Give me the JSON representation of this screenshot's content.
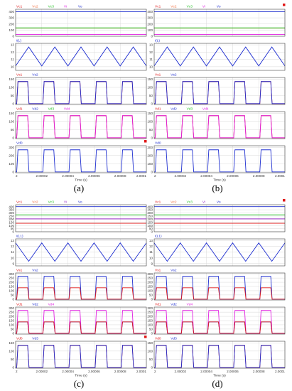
{
  "captions": [
    "(a)",
    "(b)",
    "(c)",
    "(d)"
  ],
  "colors": {
    "blue": "#1f2fd0",
    "red": "#e01818",
    "orange": "#f06a3a",
    "green": "#1ec01e",
    "magenta": "#e020e0",
    "purple": "#9a30c8",
    "grid": "#d9d9d9",
    "axis": "#000000"
  },
  "x_axis": {
    "label": "Time (s)",
    "ticks": [
      "2",
      "2.00002",
      "2.00004",
      "2.00006",
      "2.00008",
      "2.0001"
    ]
  },
  "chart_data": [
    {
      "id": "a",
      "type": "line",
      "x_range": [
        2,
        2.0001
      ],
      "cycles": 5,
      "panels": [
        {
          "legend": [
            "Vc1",
            "Vc2",
            "Vc3",
            "Vi",
            "Vo"
          ],
          "legend_colors": [
            "red",
            "orange",
            "green",
            "magenta",
            "blue"
          ],
          "yticks": [
            "0",
            "100",
            "200",
            "300",
            "400"
          ],
          "ylim": [
            0,
            440
          ],
          "series": [
            {
              "name": "Vo",
              "color": "blue",
              "shape": "flat",
              "level": 400
            },
            {
              "name": "Vc1",
              "color": "red",
              "shape": "flat",
              "level": 134
            },
            {
              "name": "Vc2",
              "color": "orange",
              "shape": "flat",
              "level": 132
            },
            {
              "name": "Vc3",
              "color": "green",
              "shape": "flat",
              "level": 136
            },
            {
              "name": "Vi",
              "color": "magenta",
              "shape": "flat",
              "level": 30
            }
          ]
        },
        {
          "legend": [
            "i(L)"
          ],
          "legend_colors": [
            "blue"
          ],
          "yticks": [
            "10",
            "11",
            "12",
            "13"
          ],
          "ylim": [
            9.5,
            13.2
          ],
          "series": [
            {
              "name": "i(L)",
              "color": "blue",
              "shape": "triangle",
              "low": 10.1,
              "high": 12.7,
              "start": "low"
            }
          ]
        },
        {
          "legend": [
            "Vs1",
            "Vs2"
          ],
          "legend_colors": [
            "red",
            "blue"
          ],
          "yticks": [
            "0",
            "50",
            "100",
            "150"
          ],
          "ylim": [
            -5,
            160
          ],
          "series": [
            {
              "name": "Vs1",
              "color": "red",
              "shape": "square",
              "low": 0,
              "high": 135,
              "duty": 0.5
            },
            {
              "name": "Vs2",
              "color": "blue",
              "shape": "square",
              "low": 0,
              "high": 135,
              "duty": 0.5
            }
          ]
        },
        {
          "legend": [
            "Vd1",
            "Vd2",
            "Vd3",
            "Vd4"
          ],
          "legend_colors": [
            "red",
            "blue",
            "green",
            "magenta"
          ],
          "yticks": [
            "0",
            "50",
            "100",
            "150"
          ],
          "ylim": [
            -5,
            160
          ],
          "series": [
            {
              "name": "Vd1",
              "color": "red",
              "shape": "square",
              "low": 0,
              "high": 135,
              "duty": 0.5
            },
            {
              "name": "Vd4",
              "color": "magenta",
              "shape": "square",
              "low": 0,
              "high": 135,
              "duty": 0.5
            }
          ]
        },
        {
          "legend": [
            "Vd0"
          ],
          "legend_colors": [
            "blue"
          ],
          "yticks": [
            "0",
            "100",
            "200",
            "300"
          ],
          "ylim": [
            -10,
            320
          ],
          "series": [
            {
              "name": "Vd0",
              "color": "blue",
              "shape": "square",
              "low": 0,
              "high": 270,
              "duty": 0.5
            }
          ]
        }
      ]
    },
    {
      "id": "b",
      "type": "line",
      "x_range": [
        2,
        2.0001
      ],
      "cycles": 5,
      "panels": [
        {
          "legend": [
            "Vc1",
            "Vc2",
            "Vc3",
            "Vi",
            "Vo"
          ],
          "legend_colors": [
            "red",
            "orange",
            "green",
            "magenta",
            "blue"
          ],
          "yticks": [
            "0",
            "100",
            "200",
            "300",
            "400"
          ],
          "ylim": [
            0,
            440
          ],
          "series": [
            {
              "name": "Vo",
              "color": "blue",
              "shape": "flat",
              "level": 400
            },
            {
              "name": "Vc1",
              "color": "red",
              "shape": "flat",
              "level": 134
            },
            {
              "name": "Vc2",
              "color": "orange",
              "shape": "flat",
              "level": 132
            },
            {
              "name": "Vc3",
              "color": "green",
              "shape": "flat",
              "level": 136
            },
            {
              "name": "Vi",
              "color": "magenta",
              "shape": "flat",
              "level": 30
            }
          ]
        },
        {
          "legend": [
            "i(L)"
          ],
          "legend_colors": [
            "blue"
          ],
          "yticks": [
            "10",
            "11",
            "12",
            "13"
          ],
          "ylim": [
            9.5,
            13.2
          ],
          "series": [
            {
              "name": "i(L)",
              "color": "blue",
              "shape": "triangle",
              "low": 10.1,
              "high": 12.7,
              "start": "low"
            }
          ]
        },
        {
          "legend": [
            "Vs1",
            "Vs2"
          ],
          "legend_colors": [
            "red",
            "blue"
          ],
          "yticks": [
            "0",
            "50",
            "100",
            "150"
          ],
          "ylim": [
            -5,
            160
          ],
          "series": [
            {
              "name": "Vs1",
              "color": "red",
              "shape": "square",
              "low": 0,
              "high": 135,
              "duty": 0.5
            },
            {
              "name": "Vs2",
              "color": "blue",
              "shape": "square",
              "low": 0,
              "high": 135,
              "duty": 0.5
            }
          ]
        },
        {
          "legend": [
            "Vd1",
            "Vd2",
            "Vd3",
            "Vd4"
          ],
          "legend_colors": [
            "red",
            "blue",
            "green",
            "magenta"
          ],
          "yticks": [
            "0",
            "50",
            "100",
            "150"
          ],
          "ylim": [
            -5,
            160
          ],
          "series": [
            {
              "name": "Vd1",
              "color": "red",
              "shape": "square",
              "low": 0,
              "high": 135,
              "duty": 0.5
            },
            {
              "name": "Vd4",
              "color": "magenta",
              "shape": "square",
              "low": 0,
              "high": 135,
              "duty": 0.5
            }
          ]
        },
        {
          "legend": [
            "Vd0"
          ],
          "legend_colors": [
            "blue"
          ],
          "yticks": [
            "0",
            "100",
            "200",
            "300"
          ],
          "ylim": [
            -10,
            320
          ],
          "series": [
            {
              "name": "Vd0",
              "color": "blue",
              "shape": "square",
              "low": 0,
              "high": 270,
              "duty": 0.5
            }
          ]
        }
      ]
    },
    {
      "id": "c",
      "type": "line",
      "x_range": [
        2,
        2.0001
      ],
      "cycles": 5,
      "panels": [
        {
          "legend": [
            "Vc1",
            "Vc2",
            "Vc3",
            "Vi",
            "Vo"
          ],
          "legend_colors": [
            "red",
            "orange",
            "green",
            "purple",
            "blue"
          ],
          "yticks": [
            "0",
            "50",
            "100",
            "150",
            "200",
            "250",
            "300",
            "350",
            "400"
          ],
          "ylim": [
            0,
            430
          ],
          "series": [
            {
              "name": "Vo",
              "color": "blue",
              "shape": "flat",
              "level": 400
            },
            {
              "name": "Vc3",
              "color": "green",
              "shape": "flat",
              "level": 270
            },
            {
              "name": "Vi",
              "color": "purple",
              "shape": "flat",
              "level": 205
            },
            {
              "name": "Vc1",
              "color": "red",
              "shape": "flat",
              "level": 135
            }
          ]
        },
        {
          "legend": [
            "i(L1)"
          ],
          "legend_colors": [
            "blue"
          ],
          "yticks": [
            "9",
            "10",
            "11",
            "12",
            "13"
          ],
          "ylim": [
            8.6,
            13.3
          ],
          "series": [
            {
              "name": "i(L1)",
              "color": "blue",
              "shape": "triangle",
              "low": 9.4,
              "high": 12.6,
              "start": "high"
            }
          ]
        },
        {
          "legend": [
            "Vs1",
            "Vs2"
          ],
          "legend_colors": [
            "red",
            "blue"
          ],
          "yticks": [
            "0",
            "50",
            "100",
            "150",
            "200",
            "250",
            "300"
          ],
          "ylim": [
            -10,
            310
          ],
          "series": [
            {
              "name": "Vs2",
              "color": "blue",
              "shape": "square",
              "low": 0,
              "high": 270,
              "duty": 0.5
            },
            {
              "name": "Vs1",
              "color": "red",
              "shape": "square",
              "low": 0,
              "high": 135,
              "duty": 0.5
            }
          ]
        },
        {
          "legend": [
            "Vd1",
            "Vd2",
            "Vd4"
          ],
          "legend_colors": [
            "red",
            "blue",
            "magenta"
          ],
          "yticks": [
            "0",
            "50",
            "100",
            "150",
            "200",
            "250",
            "300"
          ],
          "ylim": [
            -10,
            310
          ],
          "series": [
            {
              "name": "Vd4",
              "color": "magenta",
              "shape": "square",
              "low": 0,
              "high": 270,
              "duty": 0.5
            },
            {
              "name": "Vd2",
              "color": "blue",
              "shape": "square",
              "low": 0,
              "high": 135,
              "duty": 0.5
            },
            {
              "name": "Vd1",
              "color": "red",
              "shape": "square",
              "low": 0,
              "high": 135,
              "duty": 0.5
            }
          ]
        },
        {
          "legend": [
            "Vd0",
            "Vd3"
          ],
          "legend_colors": [
            "red",
            "blue"
          ],
          "yticks": [
            "0",
            "50",
            "100",
            "150"
          ],
          "ylim": [
            -5,
            160
          ],
          "series": [
            {
              "name": "Vd0",
              "color": "red",
              "shape": "square",
              "low": 0,
              "high": 135,
              "duty": 0.5
            },
            {
              "name": "Vd3",
              "color": "blue",
              "shape": "square",
              "low": 0,
              "high": 135,
              "duty": 0.5
            }
          ]
        }
      ]
    },
    {
      "id": "d",
      "type": "line",
      "x_range": [
        2,
        2.0001
      ],
      "cycles": 5,
      "panels": [
        {
          "legend": [
            "Vc1",
            "Vc2",
            "Vc3",
            "Vi",
            "Vo"
          ],
          "legend_colors": [
            "red",
            "orange",
            "green",
            "purple",
            "blue"
          ],
          "yticks": [
            "0",
            "50",
            "100",
            "150",
            "200",
            "250",
            "300",
            "350",
            "400"
          ],
          "ylim": [
            0,
            430
          ],
          "series": [
            {
              "name": "Vo",
              "color": "blue",
              "shape": "flat",
              "level": 400
            },
            {
              "name": "Vc3",
              "color": "green",
              "shape": "flat",
              "level": 270
            },
            {
              "name": "Vi",
              "color": "purple",
              "shape": "flat",
              "level": 205
            },
            {
              "name": "Vc1",
              "color": "red",
              "shape": "flat",
              "level": 135
            }
          ]
        },
        {
          "legend": [
            "i(L1)"
          ],
          "legend_colors": [
            "blue"
          ],
          "yticks": [
            "9",
            "10",
            "11",
            "12",
            "13"
          ],
          "ylim": [
            8.6,
            13.3
          ],
          "series": [
            {
              "name": "i(L1)",
              "color": "blue",
              "shape": "triangle",
              "low": 9.4,
              "high": 12.6,
              "start": "high"
            }
          ]
        },
        {
          "legend": [
            "Vs1",
            "Vs2"
          ],
          "legend_colors": [
            "red",
            "blue"
          ],
          "yticks": [
            "0",
            "50",
            "100",
            "150",
            "200",
            "250",
            "300"
          ],
          "ylim": [
            -10,
            310
          ],
          "series": [
            {
              "name": "Vs2",
              "color": "blue",
              "shape": "square",
              "low": 0,
              "high": 270,
              "duty": 0.5
            },
            {
              "name": "Vs1",
              "color": "red",
              "shape": "square",
              "low": 0,
              "high": 135,
              "duty": 0.5
            }
          ]
        },
        {
          "legend": [
            "Vd1",
            "Vd2",
            "Vd4"
          ],
          "legend_colors": [
            "red",
            "blue",
            "magenta"
          ],
          "yticks": [
            "0",
            "50",
            "100",
            "150",
            "200",
            "250",
            "300"
          ],
          "ylim": [
            -10,
            310
          ],
          "series": [
            {
              "name": "Vd4",
              "color": "magenta",
              "shape": "square",
              "low": 0,
              "high": 270,
              "duty": 0.5
            },
            {
              "name": "Vd2",
              "color": "blue",
              "shape": "square",
              "low": 0,
              "high": 135,
              "duty": 0.5
            },
            {
              "name": "Vd1",
              "color": "red",
              "shape": "square",
              "low": 0,
              "high": 135,
              "duty": 0.5
            }
          ]
        },
        {
          "legend": [
            "Vd0",
            "Vd3"
          ],
          "legend_colors": [
            "red",
            "blue"
          ],
          "yticks": [
            "0",
            "50",
            "100",
            "150"
          ],
          "ylim": [
            -5,
            160
          ],
          "series": [
            {
              "name": "Vd0",
              "color": "red",
              "shape": "square",
              "low": 0,
              "high": 135,
              "duty": 0.5
            },
            {
              "name": "Vd3",
              "color": "blue",
              "shape": "square",
              "low": 0,
              "high": 135,
              "duty": 0.5
            }
          ]
        }
      ]
    }
  ]
}
